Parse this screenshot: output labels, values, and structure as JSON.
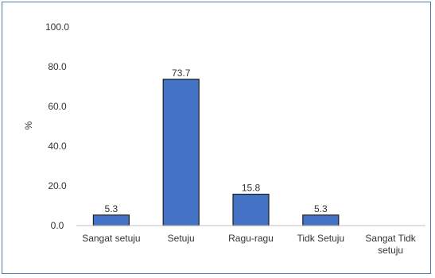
{
  "chart_data": {
    "type": "bar",
    "categories": [
      "Sangat setuju",
      "Setuju",
      "Ragu-ragu",
      "Tidk Setuju",
      "Sangat Tidk setuju"
    ],
    "values": [
      5.3,
      73.7,
      15.8,
      5.3,
      0
    ],
    "data_labels": [
      "5.3",
      "73.7",
      "15.8",
      "5.3",
      ""
    ],
    "ylabel": "%",
    "xlabel": "",
    "ylim": [
      0,
      100
    ],
    "yticks": [
      "0.0",
      "20.0",
      "40.0",
      "60.0",
      "80.0",
      "100.0"
    ],
    "grid": false,
    "legend": "none",
    "bar_color": "#4472c4",
    "bar_border_color": "#1f1f1f",
    "frame_color": "#4a7bbd"
  }
}
